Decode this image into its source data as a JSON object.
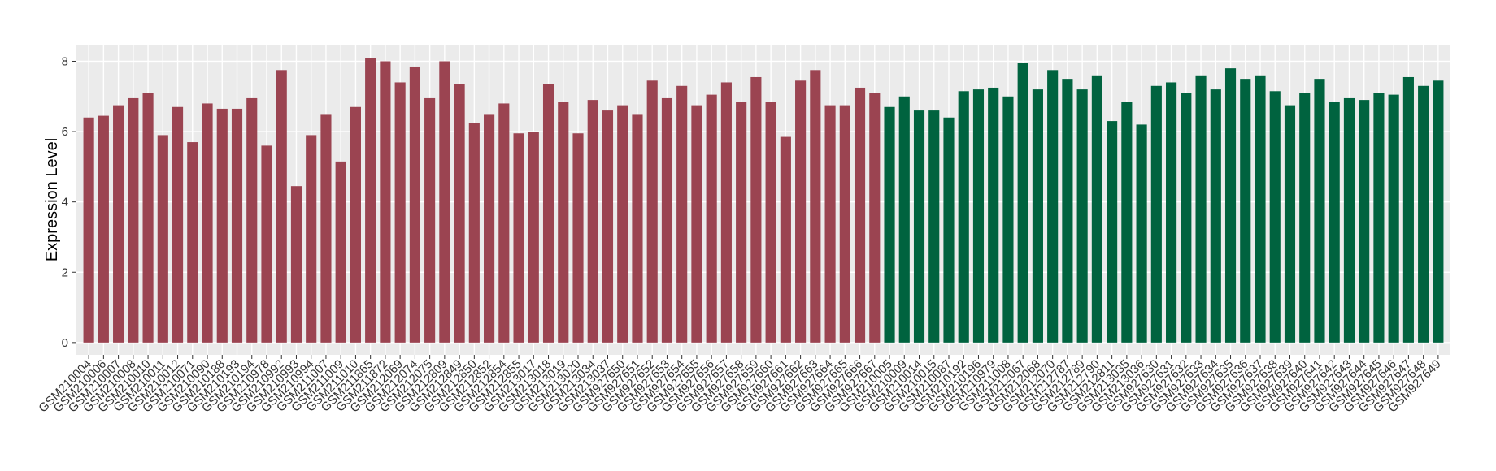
{
  "chart_data": {
    "type": "bar",
    "y_label": "Expression Level",
    "categories": [
      "GSM210004",
      "GSM210006",
      "GSM210007",
      "GSM210008",
      "GSM210010",
      "GSM210011",
      "GSM210012",
      "GSM210071",
      "GSM210090",
      "GSM210188",
      "GSM210193",
      "GSM210194",
      "GSM210978",
      "GSM210992",
      "GSM210993",
      "GSM210994",
      "GSM211007",
      "GSM211009",
      "GSM211010",
      "GSM211865",
      "GSM211872",
      "GSM212069",
      "GSM212074",
      "GSM212075",
      "GSM212809",
      "GSM212849",
      "GSM212850",
      "GSM212852",
      "GSM212854",
      "GSM212855",
      "GSM213017",
      "GSM213018",
      "GSM213019",
      "GSM213020",
      "GSM213034",
      "GSM213037",
      "GSM927650",
      "GSM927651",
      "GSM927652",
      "GSM927653",
      "GSM927654",
      "GSM927655",
      "GSM927656",
      "GSM927657",
      "GSM927658",
      "GSM927659",
      "GSM927660",
      "GSM927661",
      "GSM927662",
      "GSM927663",
      "GSM927664",
      "GSM927665",
      "GSM927666",
      "GSM927667",
      "GSM210005",
      "GSM210009",
      "GSM210014",
      "GSM210015",
      "GSM210087",
      "GSM210192",
      "GSM210196",
      "GSM210979",
      "GSM211008",
      "GSM212067",
      "GSM212068",
      "GSM212070",
      "GSM212787",
      "GSM212789",
      "GSM212790",
      "GSM212811",
      "GSM213035",
      "GSM213036",
      "GSM927630",
      "GSM927631",
      "GSM927632",
      "GSM927633",
      "GSM927634",
      "GSM927635",
      "GSM927636",
      "GSM927637",
      "GSM927638",
      "GSM927639",
      "GSM927640",
      "GSM927641",
      "GSM927642",
      "GSM927643",
      "GSM927644",
      "GSM927645",
      "GSM927646",
      "GSM927647",
      "GSM927648",
      "GSM927649"
    ],
    "values": [
      6.4,
      6.45,
      6.75,
      6.95,
      7.1,
      5.9,
      6.7,
      5.7,
      6.8,
      6.65,
      6.65,
      6.95,
      5.6,
      7.75,
      4.45,
      5.9,
      6.5,
      5.15,
      6.7,
      8.1,
      8.0,
      7.4,
      7.85,
      6.95,
      8.0,
      7.35,
      6.25,
      6.5,
      6.8,
      5.95,
      6.0,
      7.35,
      6.85,
      5.95,
      6.9,
      6.6,
      6.75,
      6.5,
      7.45,
      6.95,
      7.3,
      6.75,
      7.05,
      7.4,
      6.85,
      7.55,
      6.85,
      5.85,
      7.45,
      7.75,
      6.75,
      6.75,
      7.25,
      7.1,
      6.7,
      7.0,
      6.6,
      6.6,
      6.4,
      7.15,
      7.2,
      7.25,
      7.0,
      7.95,
      7.2,
      7.75,
      7.5,
      7.2,
      7.6,
      6.3,
      6.85,
      6.2,
      7.3,
      7.4,
      7.1,
      7.6,
      7.2,
      7.8,
      7.5,
      7.6,
      7.15,
      6.75,
      7.1,
      7.5,
      6.85,
      6.95,
      6.9,
      7.1,
      7.05,
      7.55,
      7.3,
      7.45
    ],
    "colors": [
      "#9b4451",
      "#9b4451",
      "#9b4451",
      "#9b4451",
      "#9b4451",
      "#9b4451",
      "#9b4451",
      "#9b4451",
      "#9b4451",
      "#9b4451",
      "#9b4451",
      "#9b4451",
      "#9b4451",
      "#9b4451",
      "#9b4451",
      "#9b4451",
      "#9b4451",
      "#9b4451",
      "#9b4451",
      "#9b4451",
      "#9b4451",
      "#9b4451",
      "#9b4451",
      "#9b4451",
      "#9b4451",
      "#9b4451",
      "#9b4451",
      "#9b4451",
      "#9b4451",
      "#9b4451",
      "#9b4451",
      "#9b4451",
      "#9b4451",
      "#9b4451",
      "#9b4451",
      "#9b4451",
      "#9b4451",
      "#9b4451",
      "#9b4451",
      "#9b4451",
      "#9b4451",
      "#9b4451",
      "#9b4451",
      "#9b4451",
      "#9b4451",
      "#9b4451",
      "#9b4451",
      "#9b4451",
      "#9b4451",
      "#9b4451",
      "#9b4451",
      "#9b4451",
      "#9b4451",
      "#9b4451",
      "#00633f",
      "#00633f",
      "#00633f",
      "#00633f",
      "#00633f",
      "#00633f",
      "#00633f",
      "#00633f",
      "#00633f",
      "#00633f",
      "#00633f",
      "#00633f",
      "#00633f",
      "#00633f",
      "#00633f",
      "#00633f",
      "#00633f",
      "#00633f",
      "#00633f",
      "#00633f",
      "#00633f",
      "#00633f",
      "#00633f",
      "#00633f",
      "#00633f",
      "#00633f",
      "#00633f",
      "#00633f",
      "#00633f",
      "#00633f",
      "#00633f",
      "#00633f",
      "#00633f",
      "#00633f",
      "#00633f",
      "#00633f",
      "#00633f",
      "#00633f"
    ],
    "ylim": [
      -0.35,
      8.45
    ],
    "yticks": [
      0,
      2,
      4,
      6,
      8
    ],
    "grid": true
  }
}
